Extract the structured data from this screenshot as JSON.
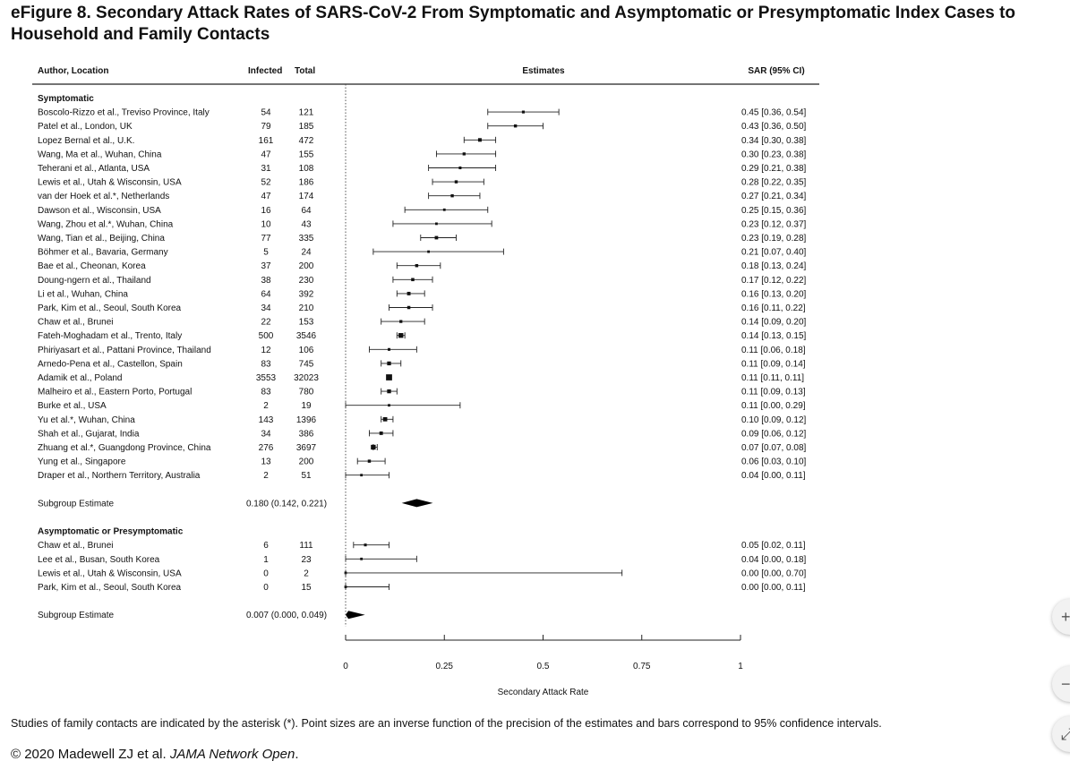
{
  "title": "eFigure 8. Secondary Attack Rates of SARS-CoV-2 From Symptomatic and Asymptomatic or Presymptomatic Index Cases to Household and Family Contacts",
  "footnote": "Studies of family contacts are indicated by the asterisk (*). Point sizes are an inverse function of the precision of the estimates and bars correspond to 95% confidence intervals.",
  "copyright": {
    "prefix": "© 2020 Madewell ZJ et al. ",
    "journal": "JAMA Network Open",
    "suffix": "."
  },
  "side_buttons": {
    "zoom_in": "+",
    "zoom_out": "−",
    "fit": "⤢"
  },
  "chart_data": {
    "type": "forest",
    "columns": {
      "study": "Author, Location",
      "infected": "Infected",
      "total": "Total",
      "estimates": "Estimates",
      "sar": "SAR (95% CI)"
    },
    "xlabel": "Secondary Attack Rate",
    "xlim": [
      0,
      1
    ],
    "xticks": [
      0,
      0.25,
      0.5,
      0.75,
      1
    ],
    "xtick_labels": [
      "0",
      "0.25",
      "0.5",
      "0.75",
      "1"
    ],
    "reference_line": 0,
    "groups": [
      {
        "name": "Symptomatic",
        "studies": [
          {
            "study": "Boscolo-Rizzo et al., Treviso Province, Italy",
            "infected": "54",
            "total": "121",
            "est": 0.45,
            "lo": 0.36,
            "hi": 0.54,
            "label": "0.45 [0.36, 0.54]"
          },
          {
            "study": "Patel et al., London, UK",
            "infected": "79",
            "total": "185",
            "est": 0.43,
            "lo": 0.36,
            "hi": 0.5,
            "label": "0.43 [0.36, 0.50]"
          },
          {
            "study": "Lopez Bernal et al., U.K.",
            "infected": "161",
            "total": "472",
            "est": 0.34,
            "lo": 0.3,
            "hi": 0.38,
            "label": "0.34 [0.30, 0.38]"
          },
          {
            "study": "Wang, Ma et al., Wuhan, China",
            "infected": "47",
            "total": "155",
            "est": 0.3,
            "lo": 0.23,
            "hi": 0.38,
            "label": "0.30 [0.23, 0.38]"
          },
          {
            "study": "Teherani et al., Atlanta, USA",
            "infected": "31",
            "total": "108",
            "est": 0.29,
            "lo": 0.21,
            "hi": 0.38,
            "label": "0.29 [0.21, 0.38]"
          },
          {
            "study": "Lewis et al., Utah & Wisconsin, USA",
            "infected": "52",
            "total": "186",
            "est": 0.28,
            "lo": 0.22,
            "hi": 0.35,
            "label": "0.28 [0.22, 0.35]"
          },
          {
            "study": "van der Hoek et al.*, Netherlands",
            "infected": "47",
            "total": "174",
            "est": 0.27,
            "lo": 0.21,
            "hi": 0.34,
            "label": "0.27 [0.21, 0.34]"
          },
          {
            "study": "Dawson et al., Wisconsin, USA",
            "infected": "16",
            "total": "64",
            "est": 0.25,
            "lo": 0.15,
            "hi": 0.36,
            "label": "0.25 [0.15, 0.36]"
          },
          {
            "study": "Wang, Zhou et al.*, Wuhan, China",
            "infected": "10",
            "total": "43",
            "est": 0.23,
            "lo": 0.12,
            "hi": 0.37,
            "label": "0.23 [0.12, 0.37]"
          },
          {
            "study": "Wang, Tian et al., Beijing, China",
            "infected": "77",
            "total": "335",
            "est": 0.23,
            "lo": 0.19,
            "hi": 0.28,
            "label": "0.23 [0.19, 0.28]"
          },
          {
            "study": "Böhmer et al., Bavaria, Germany",
            "infected": "5",
            "total": "24",
            "est": 0.21,
            "lo": 0.07,
            "hi": 0.4,
            "label": "0.21 [0.07, 0.40]"
          },
          {
            "study": "Bae et al., Cheonan, Korea",
            "infected": "37",
            "total": "200",
            "est": 0.18,
            "lo": 0.13,
            "hi": 0.24,
            "label": "0.18 [0.13, 0.24]"
          },
          {
            "study": "Doung-ngern et al., Thailand",
            "infected": "38",
            "total": "230",
            "est": 0.17,
            "lo": 0.12,
            "hi": 0.22,
            "label": "0.17 [0.12, 0.22]"
          },
          {
            "study": "Li et al., Wuhan, China",
            "infected": "64",
            "total": "392",
            "est": 0.16,
            "lo": 0.13,
            "hi": 0.2,
            "label": "0.16 [0.13, 0.20]"
          },
          {
            "study": "Park, Kim et al., Seoul, South Korea",
            "infected": "34",
            "total": "210",
            "est": 0.16,
            "lo": 0.11,
            "hi": 0.22,
            "label": "0.16 [0.11, 0.22]"
          },
          {
            "study": "Chaw et al., Brunei",
            "infected": "22",
            "total": "153",
            "est": 0.14,
            "lo": 0.09,
            "hi": 0.2,
            "label": "0.14 [0.09, 0.20]"
          },
          {
            "study": "Fateh-Moghadam et al., Trento, Italy",
            "infected": "500",
            "total": "3546",
            "est": 0.14,
            "lo": 0.13,
            "hi": 0.15,
            "label": "0.14 [0.13, 0.15]"
          },
          {
            "study": "Phiriyasart et al., Pattani Province, Thailand",
            "infected": "12",
            "total": "106",
            "est": 0.11,
            "lo": 0.06,
            "hi": 0.18,
            "label": "0.11 [0.06, 0.18]"
          },
          {
            "study": "Arnedo-Pena et al., Castellon, Spain",
            "infected": "83",
            "total": "745",
            "est": 0.11,
            "lo": 0.09,
            "hi": 0.14,
            "label": "0.11 [0.09, 0.14]"
          },
          {
            "study": "Adamik et al., Poland",
            "infected": "3553",
            "total": "32023",
            "est": 0.11,
            "lo": 0.11,
            "hi": 0.11,
            "label": "0.11 [0.11, 0.11]"
          },
          {
            "study": "Malheiro et al., Eastern Porto, Portugal",
            "infected": "83",
            "total": "780",
            "est": 0.11,
            "lo": 0.09,
            "hi": 0.13,
            "label": "0.11 [0.09, 0.13]"
          },
          {
            "study": "Burke et al., USA",
            "infected": "2",
            "total": "19",
            "est": 0.11,
            "lo": 0.0,
            "hi": 0.29,
            "label": "0.11 [0.00, 0.29]"
          },
          {
            "study": "Yu et al.*, Wuhan, China",
            "infected": "143",
            "total": "1396",
            "est": 0.1,
            "lo": 0.09,
            "hi": 0.12,
            "label": "0.10 [0.09, 0.12]"
          },
          {
            "study": "Shah et al., Gujarat, India",
            "infected": "34",
            "total": "386",
            "est": 0.09,
            "lo": 0.06,
            "hi": 0.12,
            "label": "0.09 [0.06, 0.12]"
          },
          {
            "study": "Zhuang et al.*, Guangdong Province, China",
            "infected": "276",
            "total": "3697",
            "est": 0.07,
            "lo": 0.07,
            "hi": 0.08,
            "label": "0.07 [0.07, 0.08]"
          },
          {
            "study": "Yung et al., Singapore",
            "infected": "13",
            "total": "200",
            "est": 0.06,
            "lo": 0.03,
            "hi": 0.1,
            "label": "0.06 [0.03, 0.10]"
          },
          {
            "study": "Draper et al., Northern Territory, Australia",
            "infected": "2",
            "total": "51",
            "est": 0.04,
            "lo": 0.0,
            "hi": 0.11,
            "label": "0.04 [0.00, 0.11]"
          }
        ],
        "subgroup": {
          "label": "Subgroup Estimate",
          "text": "0.180 (0.142, 0.221)",
          "est": 0.18,
          "lo": 0.142,
          "hi": 0.221
        }
      },
      {
        "name": "Asymptomatic or Presymptomatic",
        "studies": [
          {
            "study": "Chaw et al., Brunei",
            "infected": "6",
            "total": "111",
            "est": 0.05,
            "lo": 0.02,
            "hi": 0.11,
            "label": "0.05 [0.02, 0.11]"
          },
          {
            "study": "Lee et al., Busan, South Korea",
            "infected": "1",
            "total": "23",
            "est": 0.04,
            "lo": 0.0,
            "hi": 0.18,
            "label": "0.04 [0.00, 0.18]"
          },
          {
            "study": "Lewis et al., Utah & Wisconsin, USA",
            "infected": "0",
            "total": "2",
            "est": 0.0,
            "lo": 0.0,
            "hi": 0.7,
            "label": "0.00 [0.00, 0.70]"
          },
          {
            "study": "Park, Kim et al., Seoul, South Korea",
            "infected": "0",
            "total": "15",
            "est": 0.0,
            "lo": 0.0,
            "hi": 0.11,
            "label": "0.00 [0.00, 0.11]"
          }
        ],
        "subgroup": {
          "label": "Subgroup Estimate",
          "text": "0.007 (0.000, 0.049)",
          "est": 0.007,
          "lo": 0.0,
          "hi": 0.049
        }
      }
    ]
  }
}
